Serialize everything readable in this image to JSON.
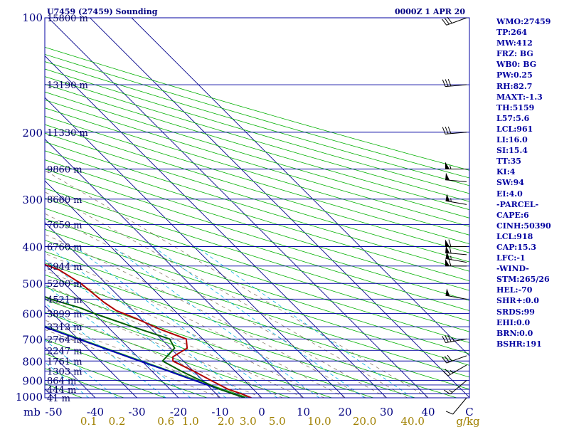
{
  "chart_data": {
    "type": "line",
    "title_left": "U7459 (27459) Sounding",
    "title_right": "0000Z  1 APR 20",
    "pressure_axis_label": "mb",
    "pressure_ticks": [
      {
        "p": 100,
        "label": "100"
      },
      {
        "p": 200,
        "label": "200"
      },
      {
        "p": 300,
        "label": "300"
      },
      {
        "p": 400,
        "label": "400"
      },
      {
        "p": 500,
        "label": "500"
      },
      {
        "p": 600,
        "label": "600"
      },
      {
        "p": 700,
        "label": "700"
      },
      {
        "p": 800,
        "label": "800"
      },
      {
        "p": 900,
        "label": "900"
      },
      {
        "p": 1000,
        "label": "1000"
      }
    ],
    "isobars": [
      100,
      150,
      200,
      250,
      300,
      350,
      400,
      450,
      500,
      550,
      600,
      650,
      700,
      750,
      800,
      850,
      900,
      925,
      950,
      975,
      1000
    ],
    "height_labels": [
      {
        "p": 100,
        "label": "15800 m"
      },
      {
        "p": 150,
        "label": "13190 m"
      },
      {
        "p": 200,
        "label": "11330 m"
      },
      {
        "p": 250,
        "label": "9860 m"
      },
      {
        "p": 300,
        "label": "8680 m"
      },
      {
        "p": 350,
        "label": "7659 m"
      },
      {
        "p": 400,
        "label": "6760 m"
      },
      {
        "p": 450,
        "label": "5944 m"
      },
      {
        "p": 500,
        "label": "5200 m"
      },
      {
        "p": 550,
        "label": "4521 m"
      },
      {
        "p": 600,
        "label": "3899 m"
      },
      {
        "p": 650,
        "label": "3313 m"
      },
      {
        "p": 700,
        "label": "2764 m"
      },
      {
        "p": 750,
        "label": "2247 m"
      },
      {
        "p": 800,
        "label": "1761 m"
      },
      {
        "p": 850,
        "label": "1303 m"
      },
      {
        "p": 900,
        "label": "864 m"
      },
      {
        "p": 950,
        "label": "444 m"
      },
      {
        "p": 1000,
        "label": "41 m"
      }
    ],
    "temperature_ticks": [
      {
        "t": -50,
        "label": "-50"
      },
      {
        "t": -40,
        "label": "-40"
      },
      {
        "t": -30,
        "label": "-30"
      },
      {
        "t": -20,
        "label": "-20"
      },
      {
        "t": -10,
        "label": "-10"
      },
      {
        "t": 0,
        "label": "0"
      },
      {
        "t": 10,
        "label": "10"
      },
      {
        "t": 20,
        "label": "20"
      },
      {
        "t": 30,
        "label": "30"
      },
      {
        "t": 40,
        "label": "40"
      }
    ],
    "temperature_unit_label": "C",
    "mixing_ratio_ticks": [
      "0.1",
      "0.2",
      "0.6",
      "1.0",
      "2.0",
      "3.0",
      "5.0",
      "10.0",
      "20.0",
      "40.0"
    ],
    "mixing_ratio_unit": "g/kg",
    "temperature_profile": [
      {
        "p": 1000,
        "t": -2.5
      },
      {
        "p": 975,
        "t": -4
      },
      {
        "p": 950,
        "t": -6
      },
      {
        "p": 900,
        "t": -8
      },
      {
        "p": 850,
        "t": -10
      },
      {
        "p": 800,
        "t": -12.5
      },
      {
        "p": 780,
        "t": -11.5
      },
      {
        "p": 740,
        "t": -6
      },
      {
        "p": 700,
        "t": -4
      },
      {
        "p": 660,
        "t": -8
      },
      {
        "p": 620,
        "t": -11
      },
      {
        "p": 590,
        "t": -14
      },
      {
        "p": 560,
        "t": -15
      },
      {
        "p": 500,
        "t": -16
      },
      {
        "p": 460,
        "t": -18
      },
      {
        "p": 440,
        "t": -21
      },
      {
        "p": 400,
        "t": -26
      },
      {
        "p": 350,
        "t": -34
      },
      {
        "p": 320,
        "t": -40
      },
      {
        "p": 300,
        "t": -45
      },
      {
        "p": 250,
        "t": -50
      },
      {
        "p": 200,
        "t": -54
      },
      {
        "p": 150,
        "t": -60
      },
      {
        "p": 120,
        "t": -62
      },
      {
        "p": 100,
        "t": -66
      }
    ],
    "dewpoint_profile": [
      {
        "p": 1000,
        "t": -4
      },
      {
        "p": 975,
        "t": -6
      },
      {
        "p": 950,
        "t": -8
      },
      {
        "p": 900,
        "t": -10.5
      },
      {
        "p": 850,
        "t": -13
      },
      {
        "p": 800,
        "t": -15
      },
      {
        "p": 740,
        "t": -9
      },
      {
        "p": 700,
        "t": -8
      },
      {
        "p": 650,
        "t": -14
      },
      {
        "p": 600,
        "t": -20
      },
      {
        "p": 580,
        "t": -22
      },
      {
        "p": 550,
        "t": -27
      },
      {
        "p": 470,
        "t": -36
      },
      {
        "p": 440,
        "t": -37
      },
      {
        "p": 400,
        "t": -41
      },
      {
        "p": 350,
        "t": -52
      },
      {
        "p": 300,
        "t": -59
      },
      {
        "p": 250,
        "t": -62
      },
      {
        "p": 200,
        "t": -68
      },
      {
        "p": 150,
        "t": -75
      },
      {
        "p": 120,
        "t": -80
      },
      {
        "p": 100,
        "t": -90
      }
    ],
    "parcel_profile": [
      {
        "p": 1000,
        "t": -4
      },
      {
        "p": 950,
        "t": -8
      },
      {
        "p": 900,
        "t": -12
      },
      {
        "p": 850,
        "t": -16
      },
      {
        "p": 800,
        "t": -20.5
      },
      {
        "p": 700,
        "t": -30
      },
      {
        "p": 600,
        "t": -41
      },
      {
        "p": 500,
        "t": -53
      },
      {
        "p": 400,
        "t": -66
      },
      {
        "p": 300,
        "t": -82
      },
      {
        "p": 250,
        "t": -91
      },
      {
        "p": 200,
        "t": -101
      },
      {
        "p": 150,
        "t": -114
      },
      {
        "p": 120,
        "t": -124
      },
      {
        "p": 110,
        "t": -128
      }
    ],
    "wind_barbs": [
      {
        "p": 100,
        "dir": 250,
        "spd": 30
      },
      {
        "p": 150,
        "dir": 265,
        "spd": 30
      },
      {
        "p": 200,
        "dir": 265,
        "spd": 30
      },
      {
        "p": 250,
        "dir": 270,
        "spd": 55
      },
      {
        "p": 270,
        "dir": 275,
        "spd": 50
      },
      {
        "p": 310,
        "dir": 280,
        "spd": 55
      },
      {
        "p": 400,
        "dir": 270,
        "spd": 60
      },
      {
        "p": 420,
        "dir": 275,
        "spd": 60
      },
      {
        "p": 440,
        "dir": 280,
        "spd": 55
      },
      {
        "p": 450,
        "dir": 270,
        "spd": 60
      },
      {
        "p": 550,
        "dir": 280,
        "spd": 50
      },
      {
        "p": 700,
        "dir": 260,
        "spd": 35
      },
      {
        "p": 775,
        "dir": 250,
        "spd": 30
      },
      {
        "p": 820,
        "dir": 240,
        "spd": 25
      },
      {
        "p": 900,
        "dir": 230,
        "spd": 15
      },
      {
        "p": 1000,
        "dir": 220,
        "spd": 10
      }
    ],
    "colors": {
      "frame": "#0000a0",
      "isobar": "#0000a0",
      "isotherm": "#00008b",
      "dry_adiabat": "#00b000",
      "moist_adiabat": "#8b7d6b",
      "mixing_ratio": "#00b0e0",
      "temperature": "#b00000",
      "dewpoint": "#006000",
      "parcel": "#0000b0",
      "labels": "#000080",
      "stats_text": "#0000a0",
      "mixing_label": "#a08000"
    }
  },
  "stats": [
    "WMO:27459",
    "TP:264",
    "MW:412",
    "FRZ: BG",
    "WB0: BG",
    "PW:0.25",
    "RH:82.7",
    "MAXT:-1.3",
    "TH:5159",
    "L57:5.6",
    "LCL:961",
    "LI:16.0",
    "SI:15.4",
    "TT:35",
    "KI:4",
    "SW:94",
    "EI:4.0",
    "-PARCEL-",
    "CAPE:6",
    "CINH:50390",
    "LCL:918",
    "CAP:15.3",
    "LFC:-1",
    "-WIND-",
    "STM:265/26",
    "HEL:-70",
    "SHR+:0.0",
    "SRDS:99",
    "EHI:0.0",
    "BRN:0.0",
    "BSHR:191"
  ]
}
